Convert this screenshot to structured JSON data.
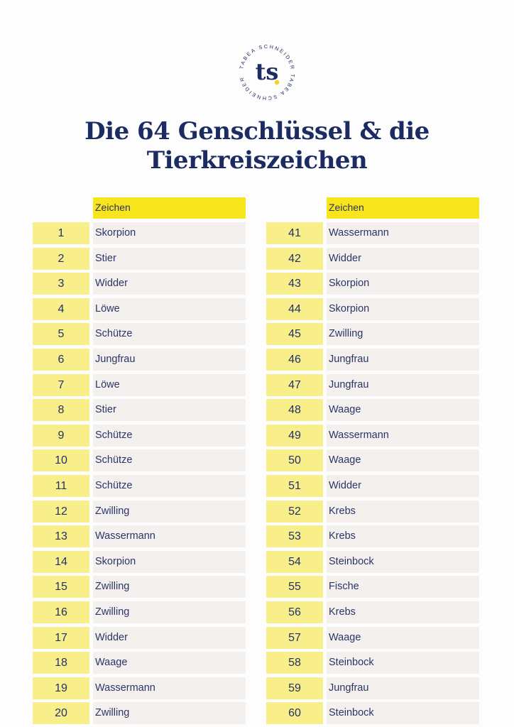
{
  "logo": {
    "monogram": "ts",
    "ring_text": "TABEA SCHNEIDER TABEA SCHNEIDER"
  },
  "title": {
    "line1": "Die 64 Genschlüssel & die",
    "line2": "Tierkreiszeichen"
  },
  "left_table": {
    "header": "Zeichen",
    "rows": [
      {
        "num": "1",
        "sign": "Skorpion"
      },
      {
        "num": "2",
        "sign": "Stier"
      },
      {
        "num": "3",
        "sign": "Widder"
      },
      {
        "num": "4",
        "sign": "Löwe"
      },
      {
        "num": "5",
        "sign": "Schütze"
      },
      {
        "num": "6",
        "sign": "Jungfrau"
      },
      {
        "num": "7",
        "sign": "Löwe"
      },
      {
        "num": "8",
        "sign": "Stier"
      },
      {
        "num": "9",
        "sign": "Schütze"
      },
      {
        "num": "10",
        "sign": "Schütze"
      },
      {
        "num": "11",
        "sign": "Schütze"
      },
      {
        "num": "12",
        "sign": "Zwilling"
      },
      {
        "num": "13",
        "sign": "Wassermann"
      },
      {
        "num": "14",
        "sign": "Skorpion"
      },
      {
        "num": "15",
        "sign": "Zwilling"
      },
      {
        "num": "16",
        "sign": "Zwilling"
      },
      {
        "num": "17",
        "sign": "Widder"
      },
      {
        "num": "18",
        "sign": "Waage"
      },
      {
        "num": "19",
        "sign": "Wassermann"
      },
      {
        "num": "20",
        "sign": "Zwilling"
      }
    ]
  },
  "right_table": {
    "header": "Zeichen",
    "rows": [
      {
        "num": "41",
        "sign": "Wassermann"
      },
      {
        "num": "42",
        "sign": "Widder"
      },
      {
        "num": "43",
        "sign": "Skorpion"
      },
      {
        "num": "44",
        "sign": "Skorpion"
      },
      {
        "num": "45",
        "sign": "Zwilling"
      },
      {
        "num": "46",
        "sign": "Jungfrau"
      },
      {
        "num": "47",
        "sign": "Jungfrau"
      },
      {
        "num": "48",
        "sign": "Waage"
      },
      {
        "num": "49",
        "sign": "Wassermann"
      },
      {
        "num": "50",
        "sign": "Waage"
      },
      {
        "num": "51",
        "sign": "Widder"
      },
      {
        "num": "52",
        "sign": "Krebs"
      },
      {
        "num": "53",
        "sign": "Krebs"
      },
      {
        "num": "54",
        "sign": "Steinbock"
      },
      {
        "num": "55",
        "sign": "Fische"
      },
      {
        "num": "56",
        "sign": "Krebs"
      },
      {
        "num": "57",
        "sign": "Waage"
      },
      {
        "num": "58",
        "sign": "Steinbock"
      },
      {
        "num": "59",
        "sign": "Jungfrau"
      },
      {
        "num": "60",
        "sign": "Steinbock"
      }
    ]
  },
  "colors": {
    "navy": "#1d2b63",
    "header_yellow": "#f8e61c",
    "number_yellow": "#f8ef8a",
    "cell_gray": "#f3f0ee",
    "logo_dot": "#f4d21a"
  }
}
